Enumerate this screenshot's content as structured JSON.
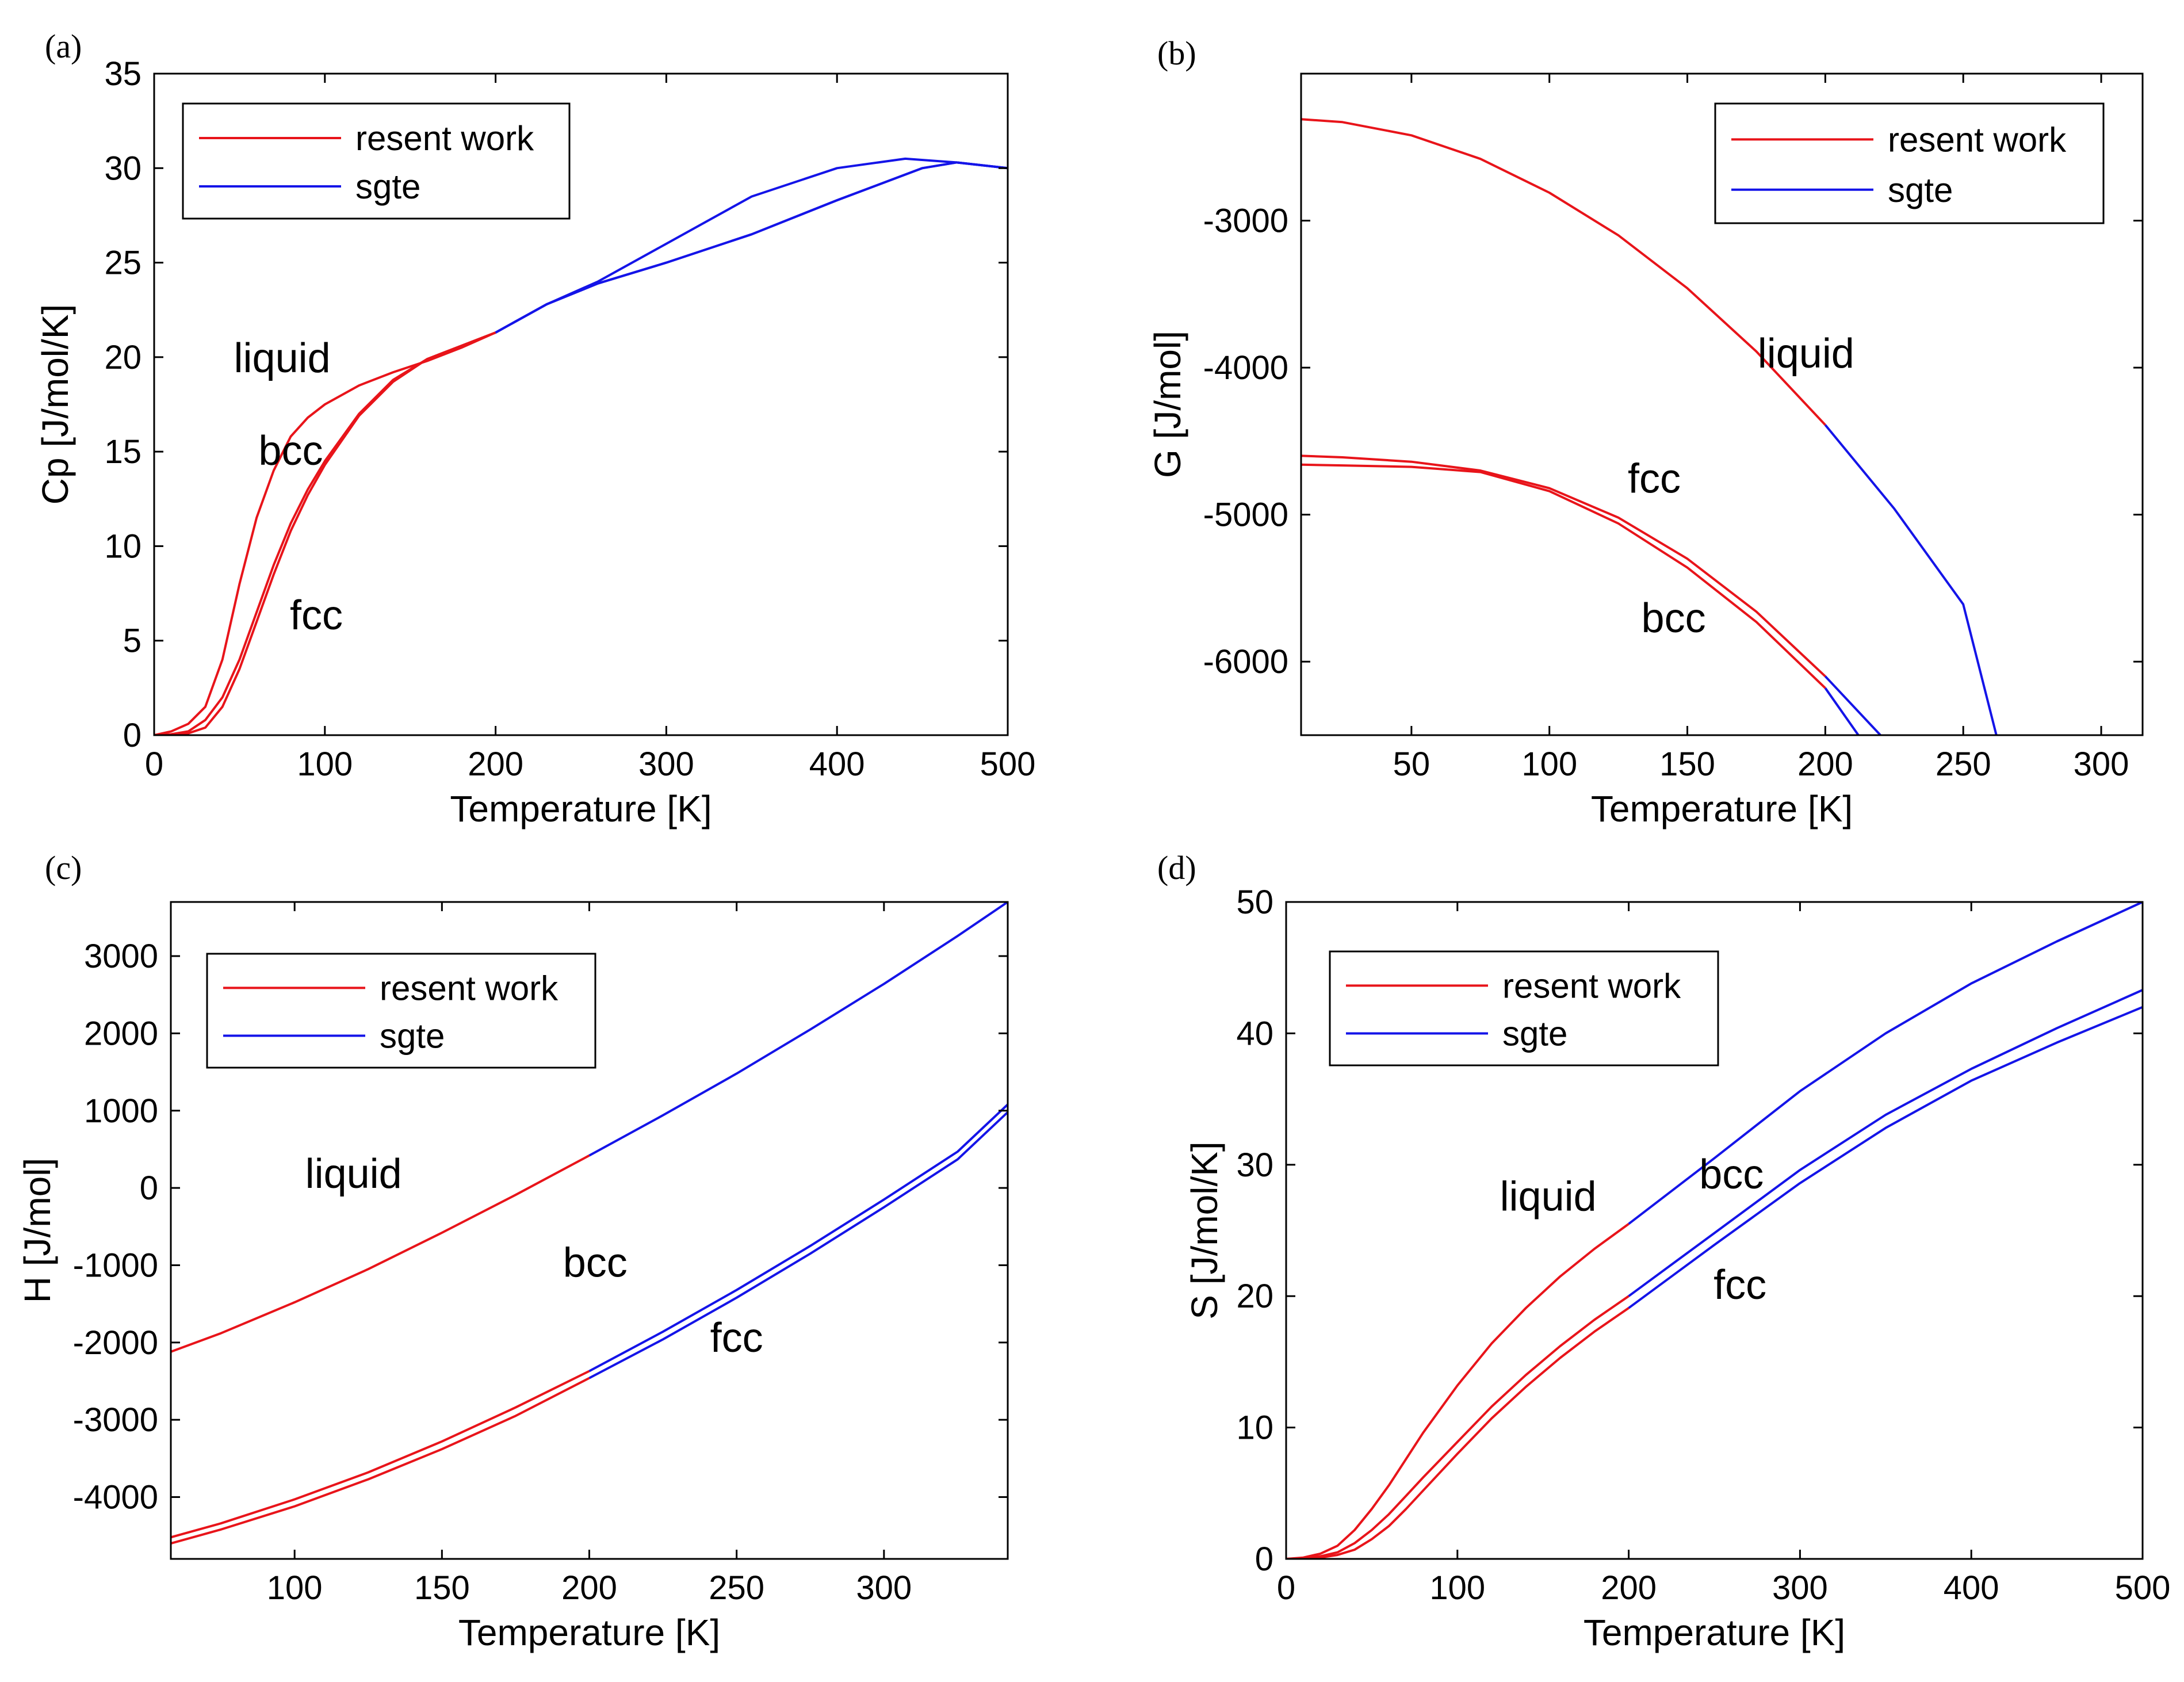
{
  "figure": {
    "colors": {
      "present": "#e8141a",
      "sgte": "#1414e8",
      "axis": "#000000"
    },
    "legend": {
      "present_label": "resent work",
      "sgte_label": "sgte"
    }
  },
  "chart_data": [
    {
      "id": "a",
      "panel_label": "(a)",
      "type": "line",
      "xlabel": "Temperature [K]",
      "ylabel": "Cp [J/mol/K]",
      "xlim": [
        0,
        500
      ],
      "ylim": [
        0,
        35
      ],
      "xticks": [
        0,
        100,
        200,
        300,
        400,
        500
      ],
      "yticks": [
        0,
        5,
        10,
        15,
        20,
        25,
        30,
        35
      ],
      "legend_position": "top-left",
      "switch_T": 200,
      "series": [
        {
          "name": "liquid",
          "points": [
            [
              0,
              0
            ],
            [
              10,
              0.2
            ],
            [
              20,
              0.6
            ],
            [
              30,
              1.5
            ],
            [
              40,
              4
            ],
            [
              50,
              8
            ],
            [
              60,
              11.5
            ],
            [
              70,
              14
            ],
            [
              80,
              15.8
            ],
            [
              90,
              16.8
            ],
            [
              100,
              17.5
            ],
            [
              120,
              18.5
            ],
            [
              140,
              19.2
            ],
            [
              160,
              19.8
            ],
            [
              180,
              20.5
            ],
            [
              200,
              21.3
            ],
            [
              230,
              22.8
            ],
            [
              260,
              24
            ],
            [
              300,
              26
            ],
            [
              350,
              28.5
            ],
            [
              400,
              30
            ],
            [
              440,
              30.5
            ],
            [
              470,
              30.3
            ],
            [
              500,
              30
            ]
          ]
        },
        {
          "name": "bcc",
          "points": [
            [
              0,
              0
            ],
            [
              10,
              0.05
            ],
            [
              20,
              0.2
            ],
            [
              30,
              0.8
            ],
            [
              40,
              2
            ],
            [
              50,
              4
            ],
            [
              60,
              6.5
            ],
            [
              70,
              9
            ],
            [
              80,
              11.2
            ],
            [
              90,
              13
            ],
            [
              100,
              14.5
            ],
            [
              120,
              17
            ],
            [
              140,
              18.8
            ],
            [
              160,
              19.9
            ],
            [
              180,
              20.6
            ],
            [
              200,
              21.3
            ],
            [
              230,
              22.8
            ],
            [
              260,
              23.9
            ],
            [
              300,
              25
            ],
            [
              350,
              26.5
            ],
            [
              400,
              28.3
            ],
            [
              450,
              30
            ],
            [
              470,
              30.3
            ],
            [
              500,
              30
            ]
          ]
        },
        {
          "name": "fcc",
          "points": [
            [
              0,
              0
            ],
            [
              10,
              0.02
            ],
            [
              20,
              0.1
            ],
            [
              30,
              0.4
            ],
            [
              40,
              1.5
            ],
            [
              50,
              3.5
            ],
            [
              60,
              6
            ],
            [
              70,
              8.5
            ],
            [
              80,
              10.8
            ],
            [
              90,
              12.7
            ],
            [
              100,
              14.3
            ],
            [
              120,
              16.9
            ],
            [
              140,
              18.7
            ],
            [
              160,
              19.9
            ],
            [
              180,
              20.6
            ],
            [
              200,
              21.3
            ],
            [
              230,
              22.8
            ],
            [
              260,
              23.9
            ],
            [
              300,
              25
            ],
            [
              350,
              26.5
            ],
            [
              400,
              28.3
            ],
            [
              450,
              30
            ],
            [
              470,
              30.3
            ],
            [
              500,
              30
            ]
          ]
        }
      ],
      "annotations": [
        {
          "text": "liquid",
          "x": 75,
          "y": 19.2
        },
        {
          "text": "bcc",
          "x": 80,
          "y": 14.3
        },
        {
          "text": "fcc",
          "x": 95,
          "y": 5.6
        }
      ]
    },
    {
      "id": "b",
      "panel_label": "(b)",
      "type": "line",
      "xlabel": "Temperature [K]",
      "ylabel": "G [J/mol]",
      "xlim": [
        10,
        315
      ],
      "ylim": [
        -6500,
        -2000
      ],
      "xticks": [
        50,
        100,
        150,
        200,
        250,
        300
      ],
      "yticks": [
        -6000,
        -5000,
        -4000,
        -3000
      ],
      "ytick_labels": [
        "-6000",
        "-5000",
        "-4000",
        "-3000"
      ],
      "legend_position": "top-right",
      "switch_T": 200,
      "series": [
        {
          "name": "liquid",
          "points": [
            [
              10,
              -2310
            ],
            [
              25,
              -2330
            ],
            [
              50,
              -2420
            ],
            [
              75,
              -2580
            ],
            [
              100,
              -2810
            ],
            [
              125,
              -3100
            ],
            [
              150,
              -3460
            ],
            [
              175,
              -3890
            ],
            [
              200,
              -4390
            ],
            [
              225,
              -4960
            ],
            [
              250,
              -5610
            ],
            [
              262,
              -6500
            ]
          ]
        },
        {
          "name": "fcc",
          "points": [
            [
              10,
              -4600
            ],
            [
              25,
              -4610
            ],
            [
              50,
              -4640
            ],
            [
              75,
              -4700
            ],
            [
              100,
              -4820
            ],
            [
              125,
              -5020
            ],
            [
              150,
              -5300
            ],
            [
              175,
              -5660
            ],
            [
              200,
              -6100
            ],
            [
              220,
              -6500
            ]
          ]
        },
        {
          "name": "bcc",
          "points": [
            [
              10,
              -4660
            ],
            [
              25,
              -4665
            ],
            [
              50,
              -4675
            ],
            [
              75,
              -4710
            ],
            [
              100,
              -4840
            ],
            [
              125,
              -5060
            ],
            [
              150,
              -5360
            ],
            [
              175,
              -5730
            ],
            [
              200,
              -6180
            ],
            [
              212,
              -6500
            ]
          ]
        }
      ],
      "annotations": [
        {
          "text": "liquid",
          "x": 193,
          "y": -4000
        },
        {
          "text": "fcc",
          "x": 138,
          "y": -4850
        },
        {
          "text": "bcc",
          "x": 145,
          "y": -5800
        }
      ]
    },
    {
      "id": "c",
      "panel_label": "(c)",
      "type": "line",
      "xlabel": "Temperature [K]",
      "ylabel": "H [J/mol]",
      "xlim": [
        58,
        342
      ],
      "ylim": [
        -4800,
        3700
      ],
      "xticks": [
        100,
        150,
        200,
        250,
        300
      ],
      "yticks": [
        -4000,
        -3000,
        -2000,
        -1000,
        0,
        1000,
        2000,
        3000
      ],
      "ytick_labels": [
        "-4000",
        "-3000",
        "-2000",
        "-1000",
        "0",
        "1000",
        "2000",
        "3000"
      ],
      "legend_position": "top-left",
      "switch_T": 200,
      "series": [
        {
          "name": "liquid",
          "points": [
            [
              58,
              -2120
            ],
            [
              75,
              -1880
            ],
            [
              100,
              -1480
            ],
            [
              125,
              -1050
            ],
            [
              150,
              -580
            ],
            [
              175,
              -90
            ],
            [
              200,
              420
            ],
            [
              225,
              940
            ],
            [
              250,
              1480
            ],
            [
              275,
              2050
            ],
            [
              300,
              2640
            ],
            [
              325,
              3260
            ],
            [
              342,
              3700
            ]
          ]
        },
        {
          "name": "bcc",
          "points": [
            [
              58,
              -4520
            ],
            [
              75,
              -4340
            ],
            [
              100,
              -4030
            ],
            [
              125,
              -3680
            ],
            [
              150,
              -3280
            ],
            [
              175,
              -2840
            ],
            [
              200,
              -2370
            ],
            [
              225,
              -1860
            ],
            [
              250,
              -1320
            ],
            [
              275,
              -750
            ],
            [
              300,
              -150
            ],
            [
              325,
              470
            ],
            [
              342,
              1080
            ]
          ]
        },
        {
          "name": "fcc",
          "points": [
            [
              58,
              -4600
            ],
            [
              75,
              -4420
            ],
            [
              100,
              -4120
            ],
            [
              125,
              -3770
            ],
            [
              150,
              -3380
            ],
            [
              175,
              -2950
            ],
            [
              200,
              -2460
            ],
            [
              225,
              -1960
            ],
            [
              250,
              -1420
            ],
            [
              275,
              -850
            ],
            [
              300,
              -250
            ],
            [
              325,
              370
            ],
            [
              342,
              980
            ]
          ]
        }
      ],
      "annotations": [
        {
          "text": "liquid",
          "x": 120,
          "y": 0
        },
        {
          "text": "bcc",
          "x": 202,
          "y": -1150
        },
        {
          "text": "fcc",
          "x": 250,
          "y": -2120
        }
      ]
    },
    {
      "id": "d",
      "panel_label": "(d)",
      "type": "line",
      "xlabel": "Temperature [K]",
      "ylabel": "S [J/mol/K]",
      "xlim": [
        0,
        500
      ],
      "ylim": [
        0,
        50
      ],
      "xticks": [
        0,
        100,
        200,
        300,
        400,
        500
      ],
      "yticks": [
        0,
        10,
        20,
        30,
        40,
        50
      ],
      "legend_position": "top-left",
      "switch_T": 200,
      "series": [
        {
          "name": "liquid",
          "points": [
            [
              0,
              0
            ],
            [
              10,
              0.1
            ],
            [
              20,
              0.4
            ],
            [
              30,
              1.0
            ],
            [
              40,
              2.2
            ],
            [
              50,
              3.8
            ],
            [
              60,
              5.6
            ],
            [
              70,
              7.6
            ],
            [
              80,
              9.6
            ],
            [
              100,
              13.2
            ],
            [
              120,
              16.4
            ],
            [
              140,
              19.1
            ],
            [
              160,
              21.5
            ],
            [
              180,
              23.6
            ],
            [
              200,
              25.5
            ],
            [
              250,
              30.5
            ],
            [
              300,
              35.6
            ],
            [
              350,
              40
            ],
            [
              400,
              43.8
            ],
            [
              450,
              47
            ],
            [
              500,
              50
            ]
          ]
        },
        {
          "name": "bcc",
          "points": [
            [
              0,
              0
            ],
            [
              10,
              0.05
            ],
            [
              20,
              0.2
            ],
            [
              30,
              0.5
            ],
            [
              40,
              1.2
            ],
            [
              50,
              2.2
            ],
            [
              60,
              3.4
            ],
            [
              70,
              4.8
            ],
            [
              80,
              6.2
            ],
            [
              100,
              8.9
            ],
            [
              120,
              11.6
            ],
            [
              140,
              14
            ],
            [
              160,
              16.2
            ],
            [
              180,
              18.2
            ],
            [
              200,
              20.0
            ],
            [
              250,
              24.8
            ],
            [
              300,
              29.6
            ],
            [
              350,
              33.8
            ],
            [
              400,
              37.3
            ],
            [
              450,
              40.4
            ],
            [
              500,
              43.3
            ]
          ]
        },
        {
          "name": "fcc",
          "points": [
            [
              0,
              0
            ],
            [
              10,
              0.02
            ],
            [
              20,
              0.1
            ],
            [
              30,
              0.3
            ],
            [
              40,
              0.7
            ],
            [
              50,
              1.5
            ],
            [
              60,
              2.5
            ],
            [
              70,
              3.8
            ],
            [
              80,
              5.2
            ],
            [
              100,
              8.0
            ],
            [
              120,
              10.7
            ],
            [
              140,
              13.1
            ],
            [
              160,
              15.3
            ],
            [
              180,
              17.3
            ],
            [
              200,
              19.1
            ],
            [
              250,
              23.9
            ],
            [
              300,
              28.6
            ],
            [
              350,
              32.8
            ],
            [
              400,
              36.4
            ],
            [
              450,
              39.3
            ],
            [
              500,
              42
            ]
          ]
        }
      ],
      "annotations": [
        {
          "text": "liquid",
          "x": 153,
          "y": 26.5
        },
        {
          "text": "bcc",
          "x": 260,
          "y": 28.2
        },
        {
          "text": "fcc",
          "x": 265,
          "y": 19.8
        }
      ]
    }
  ]
}
